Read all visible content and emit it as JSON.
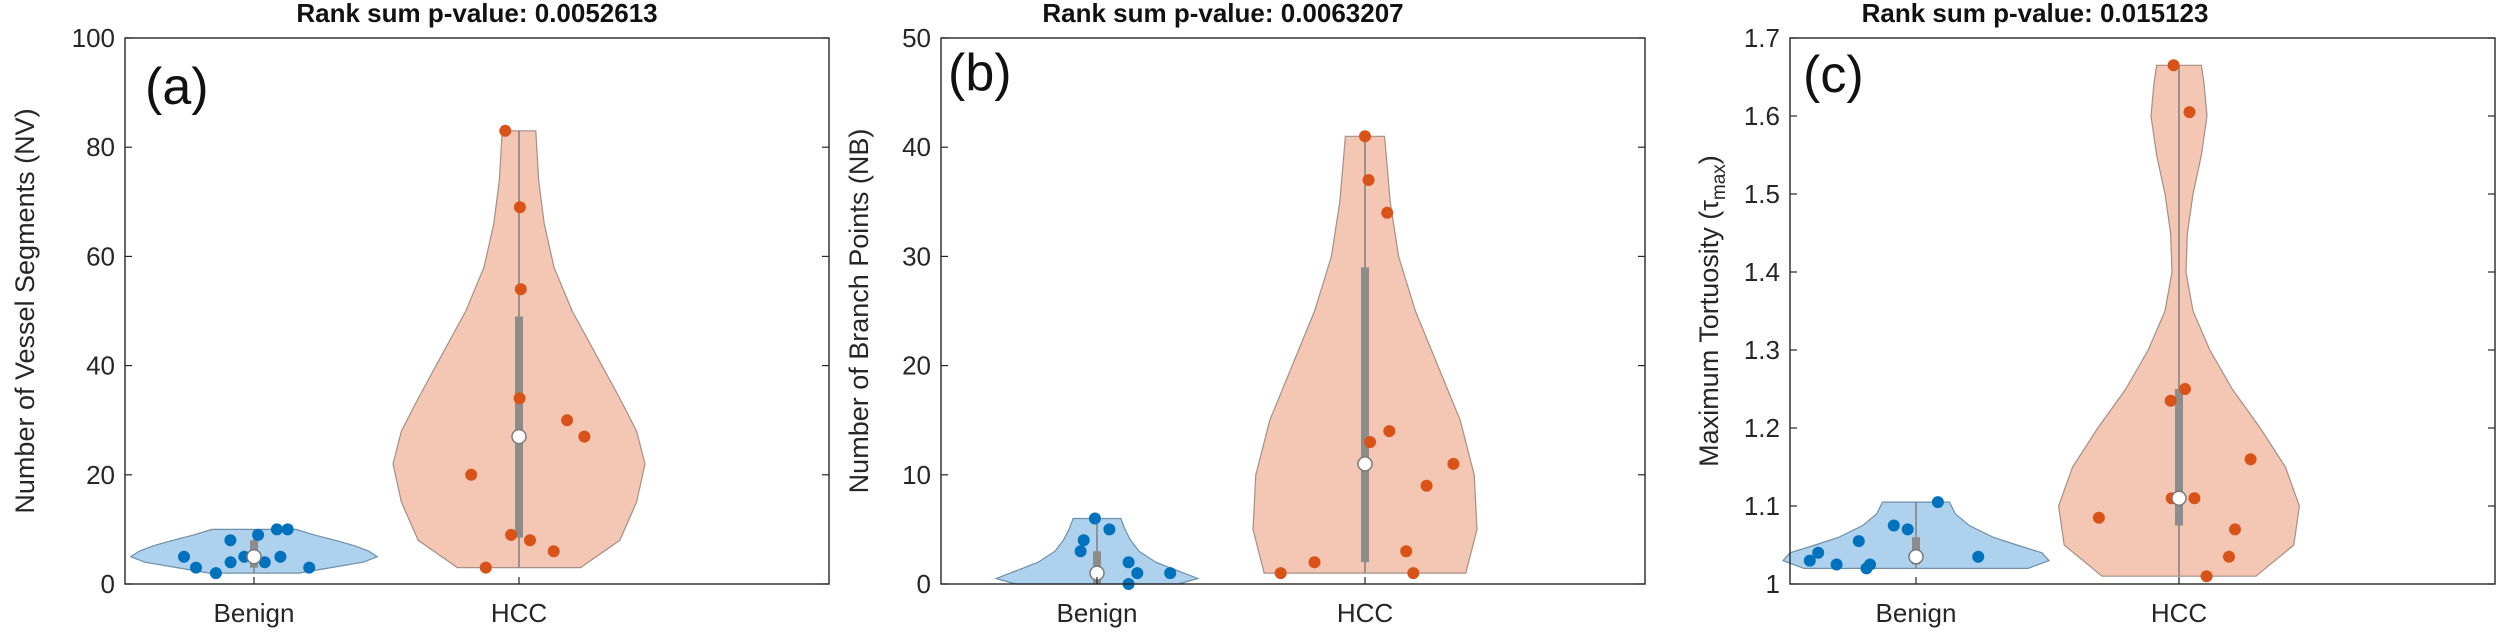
{
  "figure": {
    "panels": [
      {
        "id": "a",
        "label": "(a)",
        "title": "Rank sum p-value: 0.0052613",
        "ylabel_main": "Number of Vessel Segments (NV)",
        "ylabel_sub": "",
        "ylabel_tail": "",
        "yticks": [
          "0",
          "20",
          "40",
          "60",
          "80",
          "100"
        ]
      },
      {
        "id": "b",
        "label": "(b)",
        "title": "Rank sum p-value: 0.0063207",
        "ylabel_main": "Number of Branch Points (NB)",
        "ylabel_sub": "",
        "ylabel_tail": "",
        "yticks": [
          "0",
          "10",
          "20",
          "30",
          "40",
          "50"
        ]
      },
      {
        "id": "c",
        "label": "(c)",
        "title": "Rank sum p-value: 0.015123",
        "ylabel_main": "Maximum Tortuosity (τ",
        "ylabel_sub": "max",
        "ylabel_tail": ")",
        "yticks": [
          "1",
          "1.1",
          "1.2",
          "1.3",
          "1.4",
          "1.5",
          "1.6",
          "1.7"
        ]
      }
    ],
    "xtick_labels": [
      "Benign",
      "HCC"
    ]
  },
  "colors": {
    "benign_fill": "#aed2ee",
    "benign_edge": "#6f8fa8",
    "benign_dot": "#0072bd",
    "hcc_fill": "#f4c7b5",
    "hcc_edge": "#a58f86",
    "hcc_dot": "#d95319",
    "box": "#8c8c8c",
    "whisker": "#7f7f7f",
    "median_fill": "#ffffff"
  },
  "chart_data": [
    {
      "type": "violin",
      "title": "Rank sum p-value: 0.0052613",
      "xlabel": "",
      "ylabel": "Number of Vessel Segments (NV)",
      "categories": [
        "Benign",
        "HCC"
      ],
      "ylim": [
        0,
        100
      ],
      "ytick_values": [
        0,
        20,
        40,
        60,
        80,
        100
      ],
      "grid": false,
      "series": [
        {
          "category": "Benign",
          "points": [
            2,
            3,
            3,
            4,
            4,
            5,
            5,
            5,
            8,
            9,
            10,
            10
          ],
          "median": 5,
          "q1": 3,
          "q3": 8,
          "min": 2,
          "max": 10,
          "density": [
            [
              2,
              0.32
            ],
            [
              3,
              0.55
            ],
            [
              4,
              0.78
            ],
            [
              5,
              0.88
            ],
            [
              6,
              0.82
            ],
            [
              7,
              0.72
            ],
            [
              8,
              0.58
            ],
            [
              9,
              0.43
            ],
            [
              10,
              0.3
            ]
          ]
        },
        {
          "category": "HCC",
          "points": [
            3,
            6,
            8,
            9,
            20,
            27,
            30,
            34,
            54,
            69,
            83
          ],
          "median": 27,
          "q1": 8.5,
          "q3": 49,
          "min": 3,
          "max": 83,
          "density": [
            [
              3,
              0.44
            ],
            [
              8,
              0.72
            ],
            [
              15,
              0.84
            ],
            [
              22,
              0.9
            ],
            [
              28,
              0.84
            ],
            [
              34,
              0.72
            ],
            [
              42,
              0.55
            ],
            [
              50,
              0.38
            ],
            [
              58,
              0.25
            ],
            [
              66,
              0.18
            ],
            [
              74,
              0.14
            ],
            [
              83,
              0.12
            ]
          ]
        }
      ]
    },
    {
      "type": "violin",
      "title": "Rank sum p-value: 0.0063207",
      "xlabel": "",
      "ylabel": "Number of Branch Points (NB)",
      "categories": [
        "Benign",
        "HCC"
      ],
      "ylim": [
        0,
        50
      ],
      "ytick_values": [
        0,
        10,
        20,
        30,
        40,
        50
      ],
      "grid": false,
      "series": [
        {
          "category": "Benign",
          "points": [
            0,
            1,
            1,
            2,
            3,
            4,
            5,
            6
          ],
          "median": 1,
          "q1": 0,
          "q3": 3,
          "min": 0,
          "max": 6,
          "density": [
            [
              0,
              0.58
            ],
            [
              0.5,
              0.72
            ],
            [
              1,
              0.62
            ],
            [
              2,
              0.42
            ],
            [
              3,
              0.3
            ],
            [
              4,
              0.24
            ],
            [
              5,
              0.2
            ],
            [
              6,
              0.17
            ]
          ]
        },
        {
          "category": "HCC",
          "points": [
            1,
            1,
            2,
            3,
            9,
            11,
            13,
            14,
            34,
            37,
            41
          ],
          "median": 11,
          "q1": 2,
          "q3": 29,
          "min": 1,
          "max": 41,
          "density": [
            [
              1,
              0.72
            ],
            [
              5,
              0.8
            ],
            [
              10,
              0.78
            ],
            [
              15,
              0.68
            ],
            [
              20,
              0.52
            ],
            [
              25,
              0.36
            ],
            [
              30,
              0.24
            ],
            [
              35,
              0.18
            ],
            [
              41,
              0.14
            ]
          ]
        }
      ]
    },
    {
      "type": "violin",
      "title": "Rank sum p-value: 0.015123",
      "xlabel": "",
      "ylabel": "Maximum Tortuosity (τmax)",
      "categories": [
        "Benign",
        "HCC"
      ],
      "ylim": [
        1,
        1.7
      ],
      "ytick_values": [
        1,
        1.1,
        1.2,
        1.3,
        1.4,
        1.5,
        1.6,
        1.7
      ],
      "grid": false,
      "series": [
        {
          "category": "Benign",
          "points": [
            1.02,
            1.025,
            1.025,
            1.03,
            1.035,
            1.04,
            1.055,
            1.07,
            1.075,
            1.105
          ],
          "median": 1.035,
          "q1": 1.025,
          "q3": 1.06,
          "min": 1.02,
          "max": 1.105,
          "density": [
            [
              1.02,
              0.8
            ],
            [
              1.03,
              0.95
            ],
            [
              1.04,
              0.9
            ],
            [
              1.05,
              0.72
            ],
            [
              1.06,
              0.55
            ],
            [
              1.075,
              0.38
            ],
            [
              1.09,
              0.28
            ],
            [
              1.105,
              0.24
            ]
          ]
        },
        {
          "category": "HCC",
          "points": [
            1.01,
            1.035,
            1.07,
            1.085,
            1.11,
            1.11,
            1.16,
            1.235,
            1.25,
            1.605,
            1.665
          ],
          "median": 1.11,
          "q1": 1.075,
          "q3": 1.25,
          "min": 1.01,
          "max": 1.665,
          "density": [
            [
              1.01,
              0.55
            ],
            [
              1.05,
              0.82
            ],
            [
              1.1,
              0.86
            ],
            [
              1.15,
              0.76
            ],
            [
              1.2,
              0.58
            ],
            [
              1.25,
              0.38
            ],
            [
              1.3,
              0.22
            ],
            [
              1.35,
              0.1
            ],
            [
              1.4,
              0.05
            ],
            [
              1.45,
              0.06
            ],
            [
              1.5,
              0.1
            ],
            [
              1.55,
              0.16
            ],
            [
              1.6,
              0.2
            ],
            [
              1.64,
              0.18
            ],
            [
              1.665,
              0.16
            ]
          ]
        }
      ]
    }
  ]
}
